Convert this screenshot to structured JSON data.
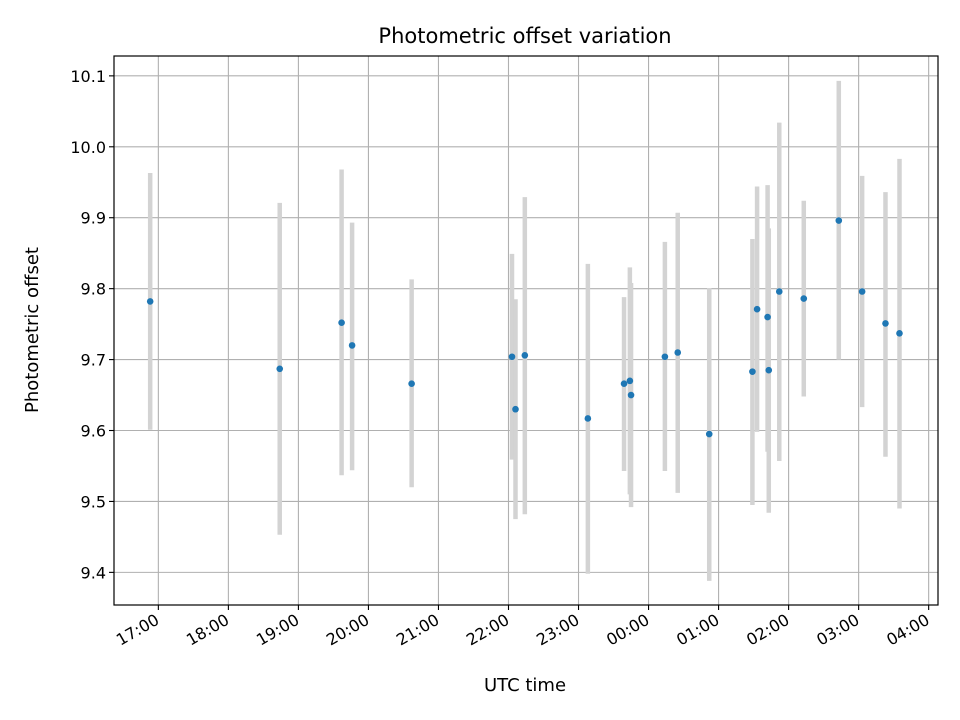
{
  "chart_data": {
    "type": "scatter",
    "title": "Photometric offset variation",
    "xlabel": "UTC time",
    "ylabel": "Photometric offset",
    "x_ticks": [
      "17:00",
      "18:00",
      "19:00",
      "20:00",
      "21:00",
      "22:00",
      "23:00",
      "00:00",
      "01:00",
      "02:00",
      "03:00",
      "04:00"
    ],
    "y_ticks": [
      "9.4",
      "9.5",
      "9.6",
      "9.7",
      "9.8",
      "9.9",
      "10.0",
      "10.1"
    ],
    "ylim": [
      9.354,
      10.128
    ],
    "xlim": [
      "16:22",
      "04:08"
    ],
    "grid": true,
    "colors": {
      "point": "#1f77b4",
      "errorbar": "#d3d3d3",
      "grid": "#b0b0b0"
    },
    "points": [
      {
        "time": "16:53",
        "value": 9.782,
        "low": 9.601,
        "high": 9.963
      },
      {
        "time": "18:44",
        "value": 9.687,
        "low": 9.453,
        "high": 9.921
      },
      {
        "time": "19:37",
        "value": 9.752,
        "low": 9.537,
        "high": 9.968
      },
      {
        "time": "19:46",
        "value": 9.72,
        "low": 9.544,
        "high": 9.893
      },
      {
        "time": "20:37",
        "value": 9.666,
        "low": 9.52,
        "high": 9.813
      },
      {
        "time": "22:03",
        "value": 9.704,
        "low": 9.559,
        "high": 9.849
      },
      {
        "time": "22:06",
        "value": 9.63,
        "low": 9.475,
        "high": 9.785
      },
      {
        "time": "22:14",
        "value": 9.706,
        "low": 9.482,
        "high": 9.929
      },
      {
        "time": "23:08",
        "value": 9.617,
        "low": 9.398,
        "high": 9.835
      },
      {
        "time": "23:39",
        "value": 9.666,
        "low": 9.543,
        "high": 9.788
      },
      {
        "time": "23:44",
        "value": 9.67,
        "low": 9.51,
        "high": 9.83
      },
      {
        "time": "23:45",
        "value": 9.65,
        "low": 9.492,
        "high": 9.808
      },
      {
        "time": "00:14",
        "value": 9.704,
        "low": 9.543,
        "high": 9.866
      },
      {
        "time": "00:25",
        "value": 9.71,
        "low": 9.512,
        "high": 9.907
      },
      {
        "time": "00:52",
        "value": 9.595,
        "low": 9.388,
        "high": 9.801
      },
      {
        "time": "01:29",
        "value": 9.683,
        "low": 9.495,
        "high": 9.87
      },
      {
        "time": "01:33",
        "value": 9.771,
        "low": 9.598,
        "high": 9.944
      },
      {
        "time": "01:42",
        "value": 9.76,
        "low": 9.57,
        "high": 9.946
      },
      {
        "time": "01:43",
        "value": 9.685,
        "low": 9.484,
        "high": 9.885
      },
      {
        "time": "01:52",
        "value": 9.796,
        "low": 9.557,
        "high": 10.034
      },
      {
        "time": "02:13",
        "value": 9.786,
        "low": 9.648,
        "high": 9.924
      },
      {
        "time": "02:43",
        "value": 9.896,
        "low": 9.7,
        "high": 10.093
      },
      {
        "time": "03:03",
        "value": 9.796,
        "low": 9.633,
        "high": 9.959
      },
      {
        "time": "03:23",
        "value": 9.751,
        "low": 9.563,
        "high": 9.936
      },
      {
        "time": "03:35",
        "value": 9.737,
        "low": 9.49,
        "high": 9.983
      }
    ]
  }
}
